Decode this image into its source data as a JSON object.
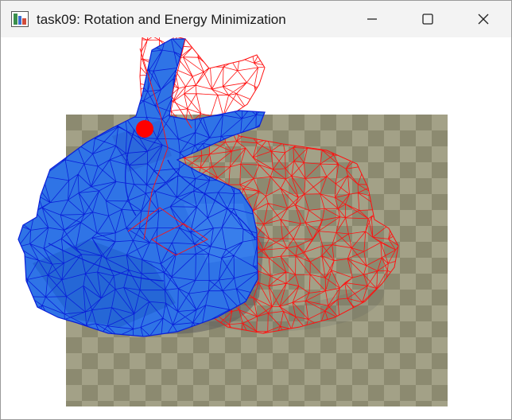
{
  "window": {
    "title": "task09: Rotation and Energy Minimization",
    "controls": {
      "minimize": "minimize-icon",
      "maximize": "maximize-icon",
      "close": "close-icon"
    }
  },
  "scene": {
    "background_color": "#ffffff",
    "floor": {
      "checker_light": "#a3a187",
      "checker_dark": "#8c8a70"
    },
    "solid_mesh": {
      "fill": "#2f74e6",
      "edge": "#0a1fd8",
      "shadow": "#5f5f5f"
    },
    "wire_mesh": {
      "edge": "#ff1010"
    },
    "handle_point": {
      "color": "#ff0000"
    }
  }
}
